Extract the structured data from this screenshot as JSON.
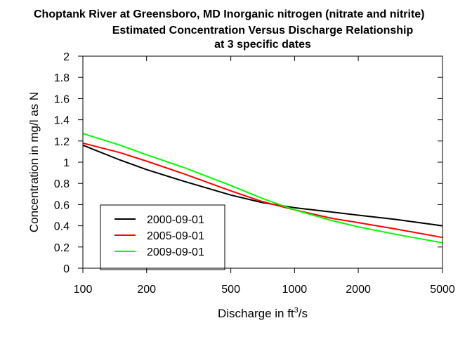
{
  "chart_data": {
    "type": "line",
    "title": "Choptank River at Greensboro, MD    Inorganic nitrogen (nitrate and nitrite)",
    "subtitle": "Estimated Concentration Versus Discharge Relationship",
    "subtitle2": "at 3 specific dates",
    "xlabel": "Discharge in ft",
    "xlabel_sup": "3",
    "xlabel_tail": "/s",
    "ylabel": "Concentration in mg/l as N",
    "x_scale": "log",
    "xlim": [
      100,
      5000
    ],
    "ylim": [
      0,
      2
    ],
    "x_ticks": [
      {
        "value": 100,
        "label": "100"
      },
      {
        "value": 200,
        "label": "200"
      },
      {
        "value": 500,
        "label": "500"
      },
      {
        "value": 1000,
        "label": "1000"
      },
      {
        "value": 2000,
        "label": "2000"
      },
      {
        "value": 5000,
        "label": "5000"
      }
    ],
    "y_ticks": [
      {
        "value": 0,
        "label": "0"
      },
      {
        "value": 0.2,
        "label": "0.2"
      },
      {
        "value": 0.4,
        "label": "0.4"
      },
      {
        "value": 0.6,
        "label": "0.6"
      },
      {
        "value": 0.8,
        "label": "0.8"
      },
      {
        "value": 1,
        "label": "1"
      },
      {
        "value": 1.2,
        "label": "1.2"
      },
      {
        "value": 1.4,
        "label": "1.4"
      },
      {
        "value": 1.6,
        "label": "1.6"
      },
      {
        "value": 1.8,
        "label": "1.8"
      },
      {
        "value": 2,
        "label": "2"
      }
    ],
    "grid": false,
    "legend_position": "bottom-left",
    "x": [
      100,
      150,
      200,
      300,
      500,
      700,
      1000,
      1500,
      2000,
      3000,
      5000
    ],
    "series": [
      {
        "name": "2000-09-01",
        "color": "#000000",
        "values": [
          1.16,
          1.02,
          0.93,
          0.82,
          0.69,
          0.62,
          0.57,
          0.53,
          0.5,
          0.46,
          0.4
        ]
      },
      {
        "name": "2005-09-01",
        "color": "#ff0000",
        "values": [
          1.18,
          1.09,
          1.01,
          0.89,
          0.73,
          0.63,
          0.55,
          0.47,
          0.43,
          0.37,
          0.29
        ]
      },
      {
        "name": "2009-09-01",
        "color": "#00ff00",
        "values": [
          1.27,
          1.16,
          1.07,
          0.95,
          0.78,
          0.66,
          0.55,
          0.45,
          0.39,
          0.32,
          0.24
        ]
      }
    ]
  }
}
